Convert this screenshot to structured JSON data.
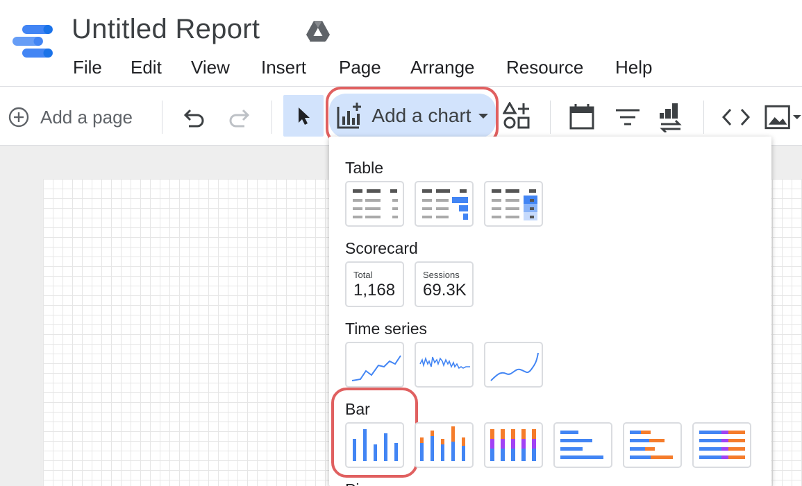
{
  "header": {
    "title": "Untitled Report",
    "menu": [
      "File",
      "Edit",
      "View",
      "Insert",
      "Page",
      "Arrange",
      "Resource",
      "Help"
    ]
  },
  "toolbar": {
    "add_page_label": "Add a page",
    "add_chart_label": "Add a chart",
    "icons": [
      "add-circle-icon",
      "undo-icon",
      "redo-icon",
      "select-cursor-icon",
      "add-chart-icon",
      "dropdown-arrow-icon",
      "controls-icon",
      "calendar-icon",
      "filter-icon",
      "data-control-icon",
      "embed-code-icon",
      "image-icon"
    ]
  },
  "dropdown": {
    "sections": {
      "table": "Table",
      "scorecard": "Scorecard",
      "time_series": "Time series",
      "bar": "Bar",
      "pie": "Pie"
    },
    "scorecards": [
      {
        "label": "Total",
        "value": "1,168"
      },
      {
        "label": "Sessions",
        "value": "69.3K"
      }
    ]
  },
  "colors": {
    "accent_blue": "#4285f4",
    "bar_orange": "#f57c2b",
    "bar_purple": "#a142f4",
    "highlight_red": "#e06060",
    "selected_bg": "#d2e3fc"
  }
}
